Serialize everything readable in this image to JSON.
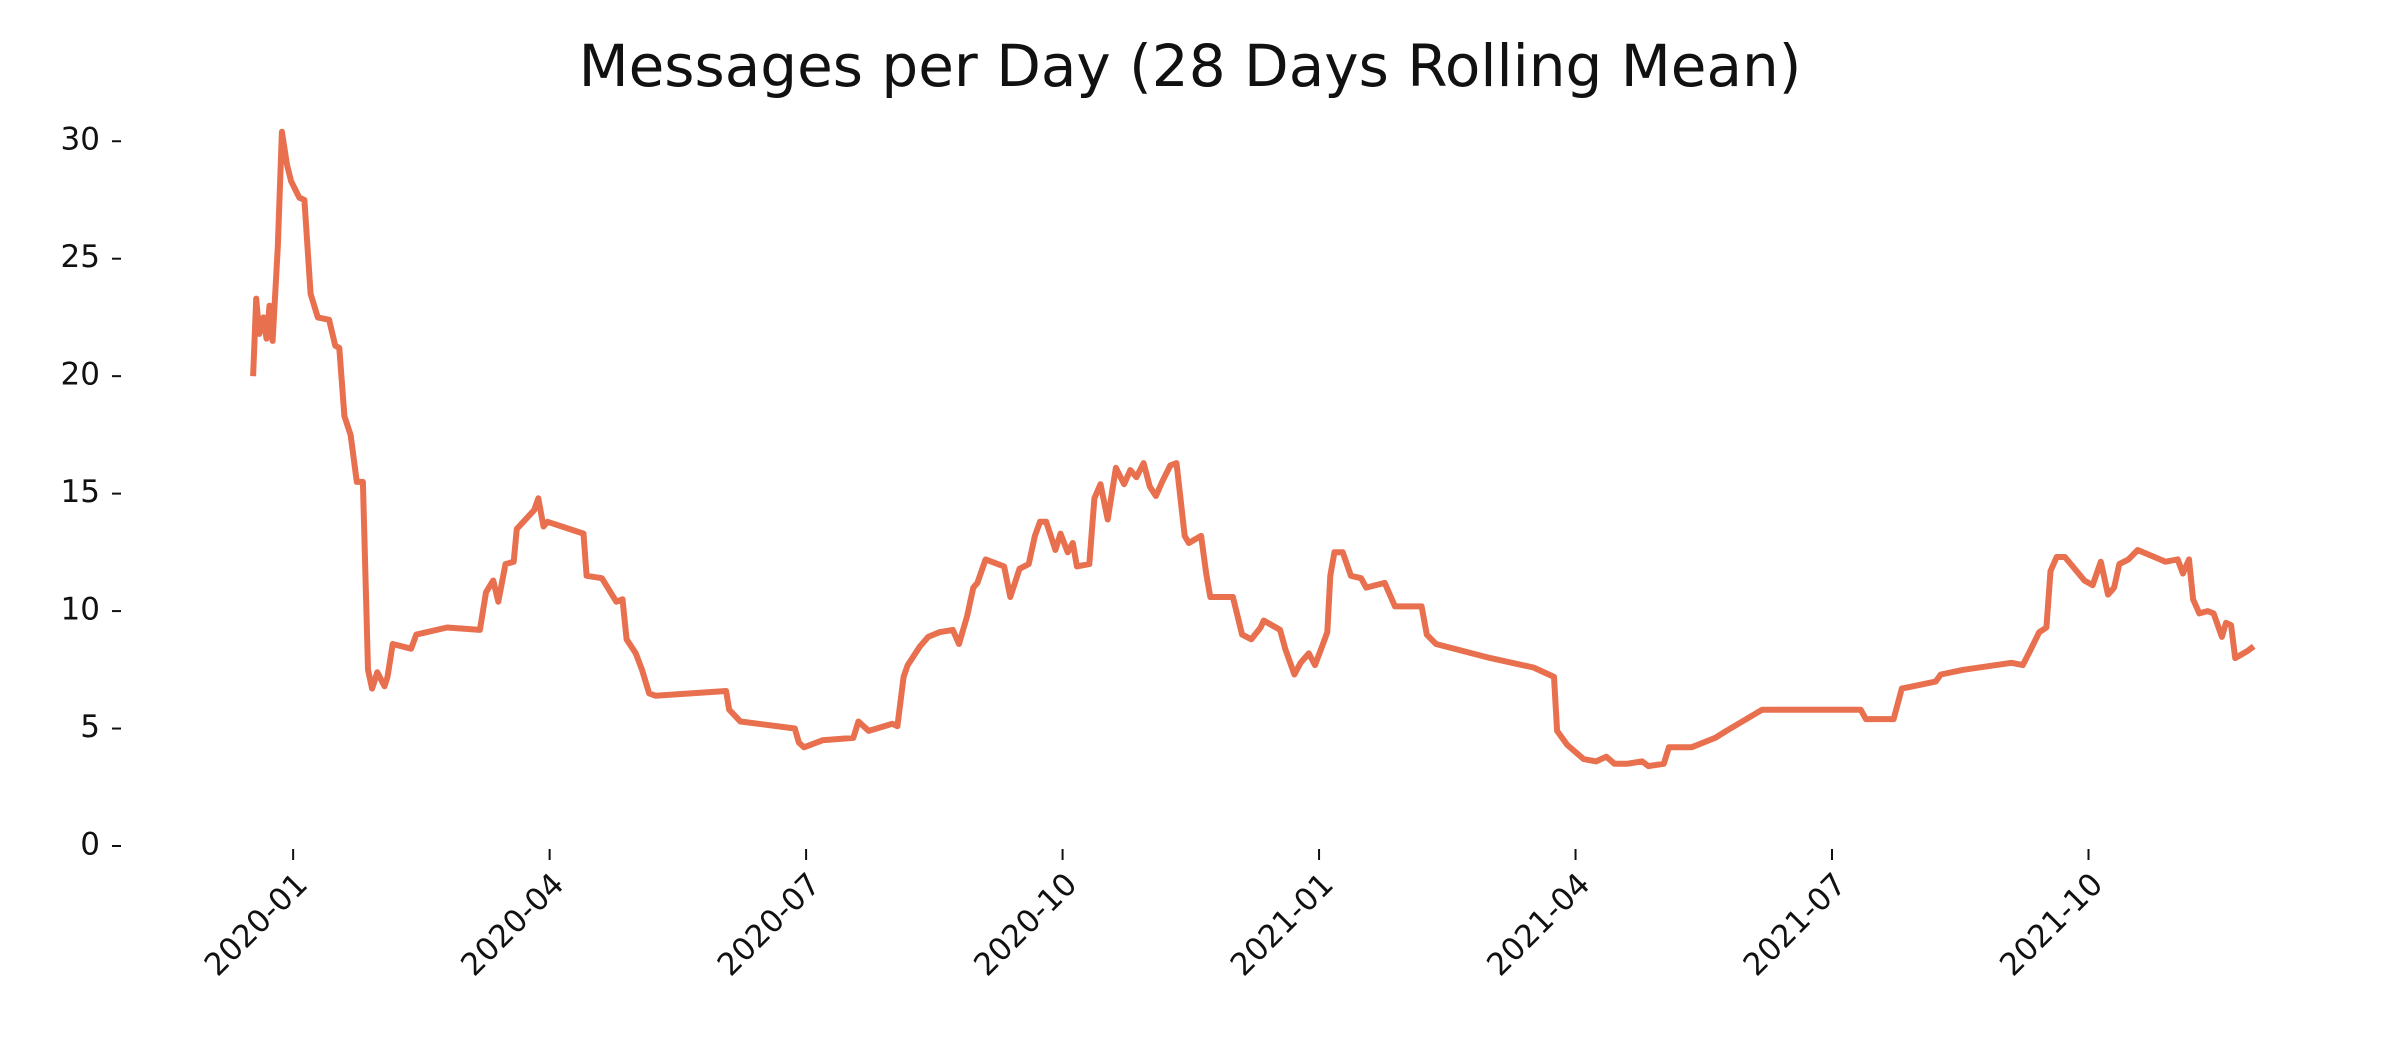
{
  "chart_data": {
    "type": "line",
    "title": "Messages per Day (28 Days Rolling Mean)",
    "x": [
      2019.961,
      2019.964,
      2019.967,
      2019.971,
      2019.974,
      2019.977,
      2019.98,
      2019.985,
      2019.989,
      2019.994,
      2019.998,
      2020.006,
      2020.011,
      2020.017,
      2020.024,
      2020.035,
      2020.041,
      2020.045,
      2020.05,
      2020.056,
      2020.062,
      2020.068,
      2020.073,
      2020.077,
      2020.082,
      2020.089,
      2020.092,
      2020.097,
      2020.115,
      2020.12,
      2020.15,
      2020.182,
      2020.188,
      2020.195,
      2020.2,
      2020.207,
      2020.215,
      2020.218,
      2020.235,
      2020.239,
      2020.244,
      2020.248,
      2020.283,
      2020.286,
      2020.301,
      2020.315,
      2020.321,
      2020.325,
      2020.334,
      2020.34,
      2020.347,
      2020.353,
      2020.422,
      2020.425,
      2020.436,
      2020.489,
      2020.493,
      2020.498,
      2020.516,
      2020.546,
      2020.551,
      2020.561,
      2020.584,
      2020.589,
      2020.595,
      2020.599,
      2020.611,
      2020.619,
      2020.63,
      2020.643,
      2020.649,
      2020.657,
      2020.663,
      2020.667,
      2020.675,
      2020.693,
      2020.699,
      2020.708,
      2020.717,
      2020.723,
      2020.728,
      2020.734,
      2020.743,
      2020.748,
      2020.755,
      2020.76,
      2020.764,
      2020.776,
      2020.781,
      2020.787,
      2020.794,
      2020.802,
      2020.81,
      2020.816,
      2020.822,
      2020.829,
      2020.835,
      2020.841,
      2020.847,
      2020.855,
      2020.861,
      2020.869,
      2020.873,
      2020.885,
      2020.89,
      2020.894,
      2020.916,
      2020.925,
      2020.934,
      2020.943,
      2020.946,
      2020.962,
      2020.967,
      2020.976,
      2020.982,
      2020.99,
      2020.996,
      2021.003,
      2021.008,
      2021.011,
      2021.015,
      2021.023,
      2021.031,
      2021.041,
      2021.046,
      2021.064,
      2021.074,
      2021.1,
      2021.105,
      2021.114,
      2021.167,
      2021.209,
      2021.229,
      2021.232,
      2021.242,
      2021.258,
      2021.27,
      2021.28,
      2021.288,
      2021.3,
      2021.315,
      2021.321,
      2021.336,
      2021.341,
      2021.363,
      2021.386,
      2021.397,
      2021.432,
      2021.528,
      2021.533,
      2021.56,
      2021.568,
      2021.601,
      2021.606,
      2021.628,
      2021.675,
      2021.686,
      2021.693,
      2021.702,
      2021.709,
      2021.713,
      2021.719,
      2021.727,
      2021.746,
      2021.754,
      2021.762,
      2021.769,
      2021.775,
      2021.78,
      2021.789,
      2021.798,
      2021.825,
      2021.837,
      2021.842,
      2021.848,
      2021.852,
      2021.858,
      2021.866,
      2021.872,
      2021.88,
      2021.884,
      2021.889,
      2021.893,
      2021.905,
      2021.911
    ],
    "values": [
      20,
      23.3,
      21.8,
      22.5,
      21.6,
      23.0,
      21.5,
      25.5,
      30.4,
      29,
      28.3,
      27.6,
      27.5,
      23.5,
      22.5,
      22.4,
      21.3,
      21.2,
      18.3,
      17.5,
      15.5,
      15.5,
      7.5,
      6.7,
      7.4,
      6.8,
      7.2,
      8.6,
      8.4,
      9.0,
      9.3,
      9.2,
      10.8,
      11.3,
      10.4,
      12,
      12.1,
      13.5,
      14.3,
      14.8,
      13.6,
      13.8,
      13.3,
      11.5,
      11.4,
      10.4,
      10.5,
      8.8,
      8.2,
      7.5,
      6.5,
      6.4,
      6.6,
      5.8,
      5.3,
      5.0,
      4.4,
      4.2,
      4.5,
      4.6,
      5.3,
      4.9,
      5.2,
      5.1,
      7.2,
      7.7,
      8.5,
      8.9,
      9.1,
      9.2,
      8.6,
      9.8,
      11.0,
      11.2,
      12.2,
      11.9,
      10.6,
      11.8,
      12.0,
      13.2,
      13.8,
      13.8,
      12.6,
      13.3,
      12.5,
      12.9,
      11.9,
      12.0,
      14.8,
      15.4,
      13.9,
      16.1,
      15.4,
      16.0,
      15.7,
      16.3,
      15.3,
      14.9,
      15.5,
      16.2,
      16.3,
      13.2,
      12.9,
      13.2,
      11.6,
      10.6,
      10.6,
      9.0,
      8.8,
      9.3,
      9.6,
      9.2,
      8.4,
      7.3,
      7.8,
      8.2,
      7.7,
      8.5,
      9.1,
      11.5,
      12.5,
      12.5,
      11.5,
      11.4,
      11.0,
      11.2,
      10.2,
      10.2,
      9.0,
      8.6,
      8.0,
      7.6,
      7.2,
      4.9,
      4.3,
      3.7,
      3.6,
      3.8,
      3.5,
      3.5,
      3.6,
      3.4,
      3.5,
      4.2,
      4.2,
      4.6,
      4.9,
      5.8,
      5.8,
      5.4,
      5.4,
      6.7,
      7.0,
      7.3,
      7.5,
      7.8,
      7.7,
      8.3,
      9.1,
      9.3,
      11.7,
      12.3,
      12.3,
      11.3,
      11.1,
      12.1,
      10.7,
      11.0,
      12,
      12.2,
      12.6,
      12.1,
      12.2,
      11.6,
      12.2,
      10.5,
      9.9,
      10.0,
      9.9,
      8.9,
      9.5,
      9.4,
      8.0,
      8.3,
      8.5
    ],
    "color": "#e8704f",
    "xlim": [
      2019.84,
      2022.04
    ],
    "ylim": [
      0,
      31.5
    ],
    "xticks": [
      {
        "value": 2020.0,
        "label": "2020-01"
      },
      {
        "value": 2020.25,
        "label": "2020-04"
      },
      {
        "value": 2020.5,
        "label": "2020-07"
      },
      {
        "value": 2020.75,
        "label": "2020-10"
      },
      {
        "value": 2021.0,
        "label": "2021-01"
      },
      {
        "value": 2021.25,
        "label": "2021-04"
      },
      {
        "value": 2021.5,
        "label": "2021-07"
      },
      {
        "value": 2021.75,
        "label": "2021-10"
      }
    ],
    "yticks": [
      0,
      5,
      10,
      15,
      20,
      25,
      30
    ]
  }
}
